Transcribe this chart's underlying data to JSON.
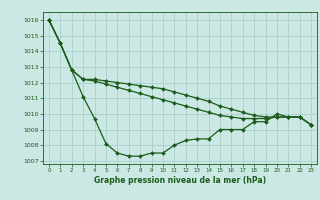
{
  "title": "Graphe pression niveau de la mer (hPa)",
  "background_color": "#cce8e4",
  "grid_color": "#aacfcb",
  "line_color": "#1a5c1a",
  "xlim": [
    -0.5,
    23.5
  ],
  "ylim": [
    1006.8,
    1016.5
  ],
  "yticks": [
    1007,
    1008,
    1009,
    1010,
    1011,
    1012,
    1013,
    1014,
    1015,
    1016
  ],
  "xticks": [
    0,
    1,
    2,
    3,
    4,
    5,
    6,
    7,
    8,
    9,
    10,
    11,
    12,
    13,
    14,
    15,
    16,
    17,
    18,
    19,
    20,
    21,
    22,
    23
  ],
  "series": [
    {
      "x": [
        0,
        1,
        2,
        3,
        4,
        5,
        6,
        7,
        8,
        9,
        10,
        11,
        12,
        13,
        14,
        15,
        16,
        17,
        18,
        19,
        20,
        21,
        22,
        23
      ],
      "y": [
        1016.0,
        1014.5,
        1012.8,
        1011.1,
        1009.7,
        1008.1,
        1007.5,
        1007.3,
        1007.3,
        1007.5,
        1007.5,
        1008.0,
        1008.3,
        1008.4,
        1008.4,
        1009.0,
        1009.0,
        1009.0,
        1009.5,
        1009.5,
        1010.0,
        1009.8,
        1009.8,
        1009.3
      ],
      "marker": "D",
      "markersize": 2.0,
      "linewidth": 0.9
    },
    {
      "x": [
        0,
        1,
        2,
        3,
        4,
        5,
        6,
        7,
        8,
        9,
        10,
        11,
        12,
        13,
        14,
        15,
        16,
        17,
        18,
        19,
        20,
        21,
        22,
        23
      ],
      "y": [
        1016.0,
        1014.5,
        1012.8,
        1012.2,
        1012.1,
        1011.9,
        1011.7,
        1011.5,
        1011.3,
        1011.1,
        1010.9,
        1010.7,
        1010.5,
        1010.3,
        1010.1,
        1009.9,
        1009.8,
        1009.7,
        1009.7,
        1009.7,
        1009.8,
        1009.8,
        1009.8,
        1009.3
      ],
      "marker": "D",
      "markersize": 2.0,
      "linewidth": 0.9
    },
    {
      "x": [
        0,
        1,
        2,
        3,
        4,
        5,
        6,
        7,
        8,
        9,
        10,
        11,
        12,
        13,
        14,
        15,
        16,
        17,
        18,
        19,
        20,
        21,
        22,
        23
      ],
      "y": [
        1016.0,
        1014.5,
        1012.8,
        1012.2,
        1012.2,
        1012.1,
        1012.0,
        1011.9,
        1011.8,
        1011.7,
        1011.6,
        1011.4,
        1011.2,
        1011.0,
        1010.8,
        1010.5,
        1010.3,
        1010.1,
        1009.9,
        1009.8,
        1009.8,
        1009.8,
        1009.8,
        1009.3
      ],
      "marker": "D",
      "markersize": 2.0,
      "linewidth": 0.9
    }
  ],
  "tick_fontsize": 5,
  "label_fontsize": 5.5,
  "title_fontsize": 6
}
